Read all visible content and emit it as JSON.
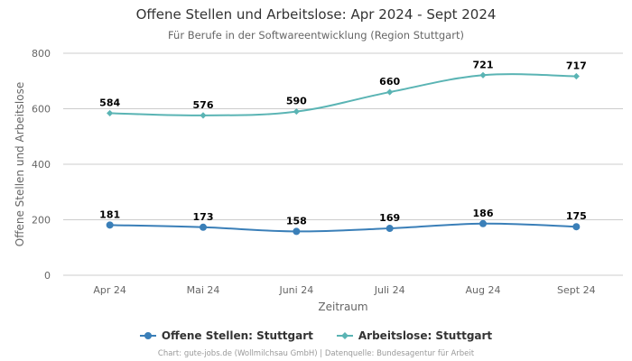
{
  "chart_data": {
    "type": "line",
    "title": "Offene Stellen und Arbeitslose: Apr 2024 - Sept 2024",
    "subtitle": "Für Berufe in der Softwareentwicklung (Region Stuttgart)",
    "xlabel": "Zeitraum",
    "ylabel": "Offene Stellen und Arbeitslose",
    "categories": [
      "Apr 24",
      "Mai 24",
      "Juni 24",
      "Juli 24",
      "Aug 24",
      "Sept 24"
    ],
    "ylim": [
      0,
      800
    ],
    "yticks": [
      "0",
      "200",
      "400",
      "600",
      "800"
    ],
    "grid": true,
    "legend_position": "bottom",
    "series": [
      {
        "name": "Offene Stellen: Stuttgart",
        "color": "#3a7fb8",
        "marker": "circle",
        "values": [
          181,
          173,
          158,
          169,
          186,
          175
        ]
      },
      {
        "name": "Arbeitslose: Stuttgart",
        "color": "#5ab4b4",
        "marker": "diamond",
        "values": [
          584,
          576,
          590,
          660,
          721,
          717
        ]
      }
    ],
    "credits": "Chart: gute-jobs.de (Wollmilchsau GmbH) | Datenquelle: Bundesagentur für Arbeit"
  }
}
